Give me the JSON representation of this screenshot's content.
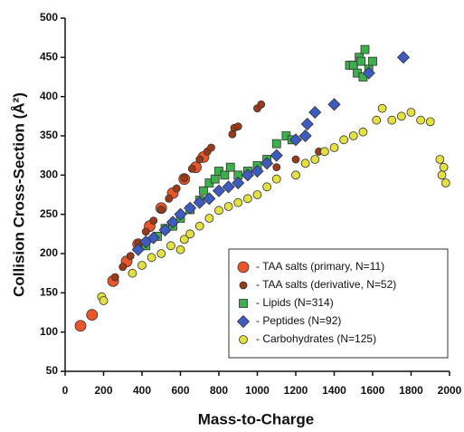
{
  "chart_data": {
    "type": "scatter",
    "x_label": "Mass-to-Charge",
    "y_label": "Collision Cross-Section (Å²)",
    "xlim": [
      0,
      2000
    ],
    "xticks": [
      0,
      200,
      400,
      600,
      800,
      1000,
      1200,
      1400,
      1600,
      1800,
      2000
    ],
    "ylim": [
      50,
      500
    ],
    "yticks": [
      50,
      100,
      150,
      200,
      250,
      300,
      350,
      400,
      450,
      500
    ],
    "legend": "lower right",
    "series": [
      {
        "name": "-  TAA salts (primary, N=11)",
        "color": "#e8562a",
        "marker": "circle",
        "size": 6,
        "x": [
          80,
          140,
          250,
          320,
          380,
          440,
          500,
          560,
          620,
          680,
          720
        ],
        "values": [
          108,
          122,
          165,
          190,
          212,
          235,
          258,
          277,
          295,
          310,
          323
        ]
      },
      {
        "name": "-  TAA salts (derivative, N=52)",
        "color": "#9c3a18",
        "marker": "circle",
        "size": 4,
        "x": [
          260,
          300,
          340,
          380,
          420,
          460,
          500,
          540,
          580,
          620,
          660,
          700,
          740,
          760,
          870,
          880,
          900,
          1000,
          1020,
          1100,
          1200,
          1320
        ],
        "values": [
          170,
          183,
          197,
          213,
          228,
          242,
          256,
          270,
          283,
          296,
          308,
          320,
          330,
          335,
          352,
          360,
          362,
          385,
          390,
          310,
          320,
          330
        ]
      },
      {
        "name": "-  Lipids (N=314)",
        "color": "#3cb04a",
        "marker": "square",
        "size": 4.5,
        "x": [
          420,
          480,
          520,
          560,
          600,
          650,
          700,
          720,
          750,
          780,
          800,
          830,
          860,
          900,
          950,
          1000,
          1050,
          1100,
          1150,
          1180,
          1480,
          1500,
          1520,
          1530,
          1540,
          1550,
          1560,
          1580,
          1600
        ],
        "values": [
          210,
          222,
          232,
          235,
          245,
          256,
          268,
          280,
          290,
          295,
          305,
          300,
          310,
          300,
          305,
          312,
          320,
          340,
          350,
          345,
          440,
          440,
          430,
          450,
          445,
          425,
          460,
          435,
          445
        ]
      },
      {
        "name": "-  Peptides (N=92)",
        "color": "#3e5bbf",
        "marker": "diamond",
        "size": 5,
        "x": [
          380,
          420,
          460,
          520,
          560,
          600,
          650,
          700,
          750,
          800,
          850,
          900,
          950,
          1000,
          1050,
          1100,
          1200,
          1250,
          1260,
          1300,
          1400,
          1580,
          1760
        ],
        "values": [
          205,
          215,
          220,
          230,
          240,
          250,
          258,
          265,
          270,
          280,
          285,
          290,
          300,
          305,
          315,
          325,
          345,
          350,
          365,
          380,
          390,
          430,
          450
        ]
      },
      {
        "name": "-  Carbohydrates (N=125)",
        "color": "#e4e040",
        "marker": "circle",
        "size": 4.5,
        "x": [
          190,
          200,
          350,
          400,
          450,
          500,
          550,
          600,
          620,
          650,
          700,
          750,
          800,
          850,
          900,
          950,
          1000,
          1050,
          1100,
          1200,
          1250,
          1300,
          1350,
          1400,
          1450,
          1500,
          1550,
          1620,
          1650,
          1700,
          1750,
          1800,
          1850,
          1900,
          1950,
          1960,
          1970,
          1980
        ],
        "values": [
          145,
          140,
          175,
          185,
          195,
          200,
          210,
          205,
          218,
          225,
          235,
          245,
          255,
          260,
          265,
          270,
          275,
          285,
          295,
          300,
          315,
          320,
          330,
          335,
          345,
          350,
          355,
          370,
          385,
          370,
          375,
          380,
          370,
          368,
          320,
          300,
          310,
          290
        ]
      }
    ]
  }
}
